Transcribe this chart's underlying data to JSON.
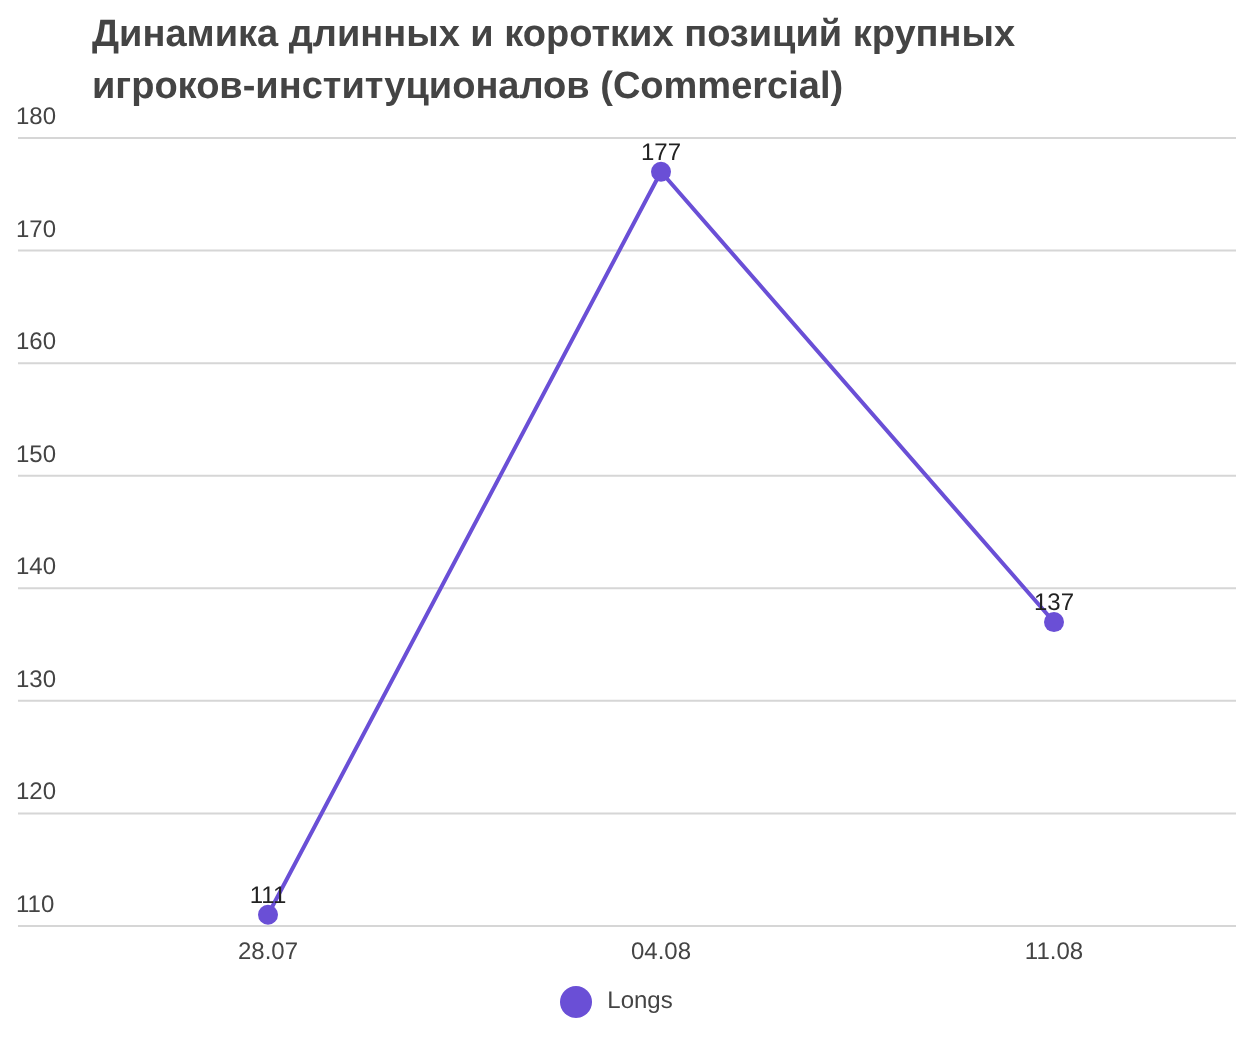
{
  "chart_data": {
    "type": "line",
    "title": "Динамика длинных и коротких позиций крупных игроков-институционалов (Commercial)",
    "categories": [
      "28.07",
      "04.08",
      "11.08"
    ],
    "series": [
      {
        "name": "Longs",
        "color": "#6a4fd6",
        "values": [
          111,
          177,
          137
        ]
      }
    ],
    "ylim": [
      110,
      180
    ],
    "yticks": [
      110,
      120,
      130,
      140,
      150,
      160,
      170,
      180
    ],
    "grid": "y",
    "legend": "bottom",
    "marker": "circle",
    "data_labels": true
  }
}
